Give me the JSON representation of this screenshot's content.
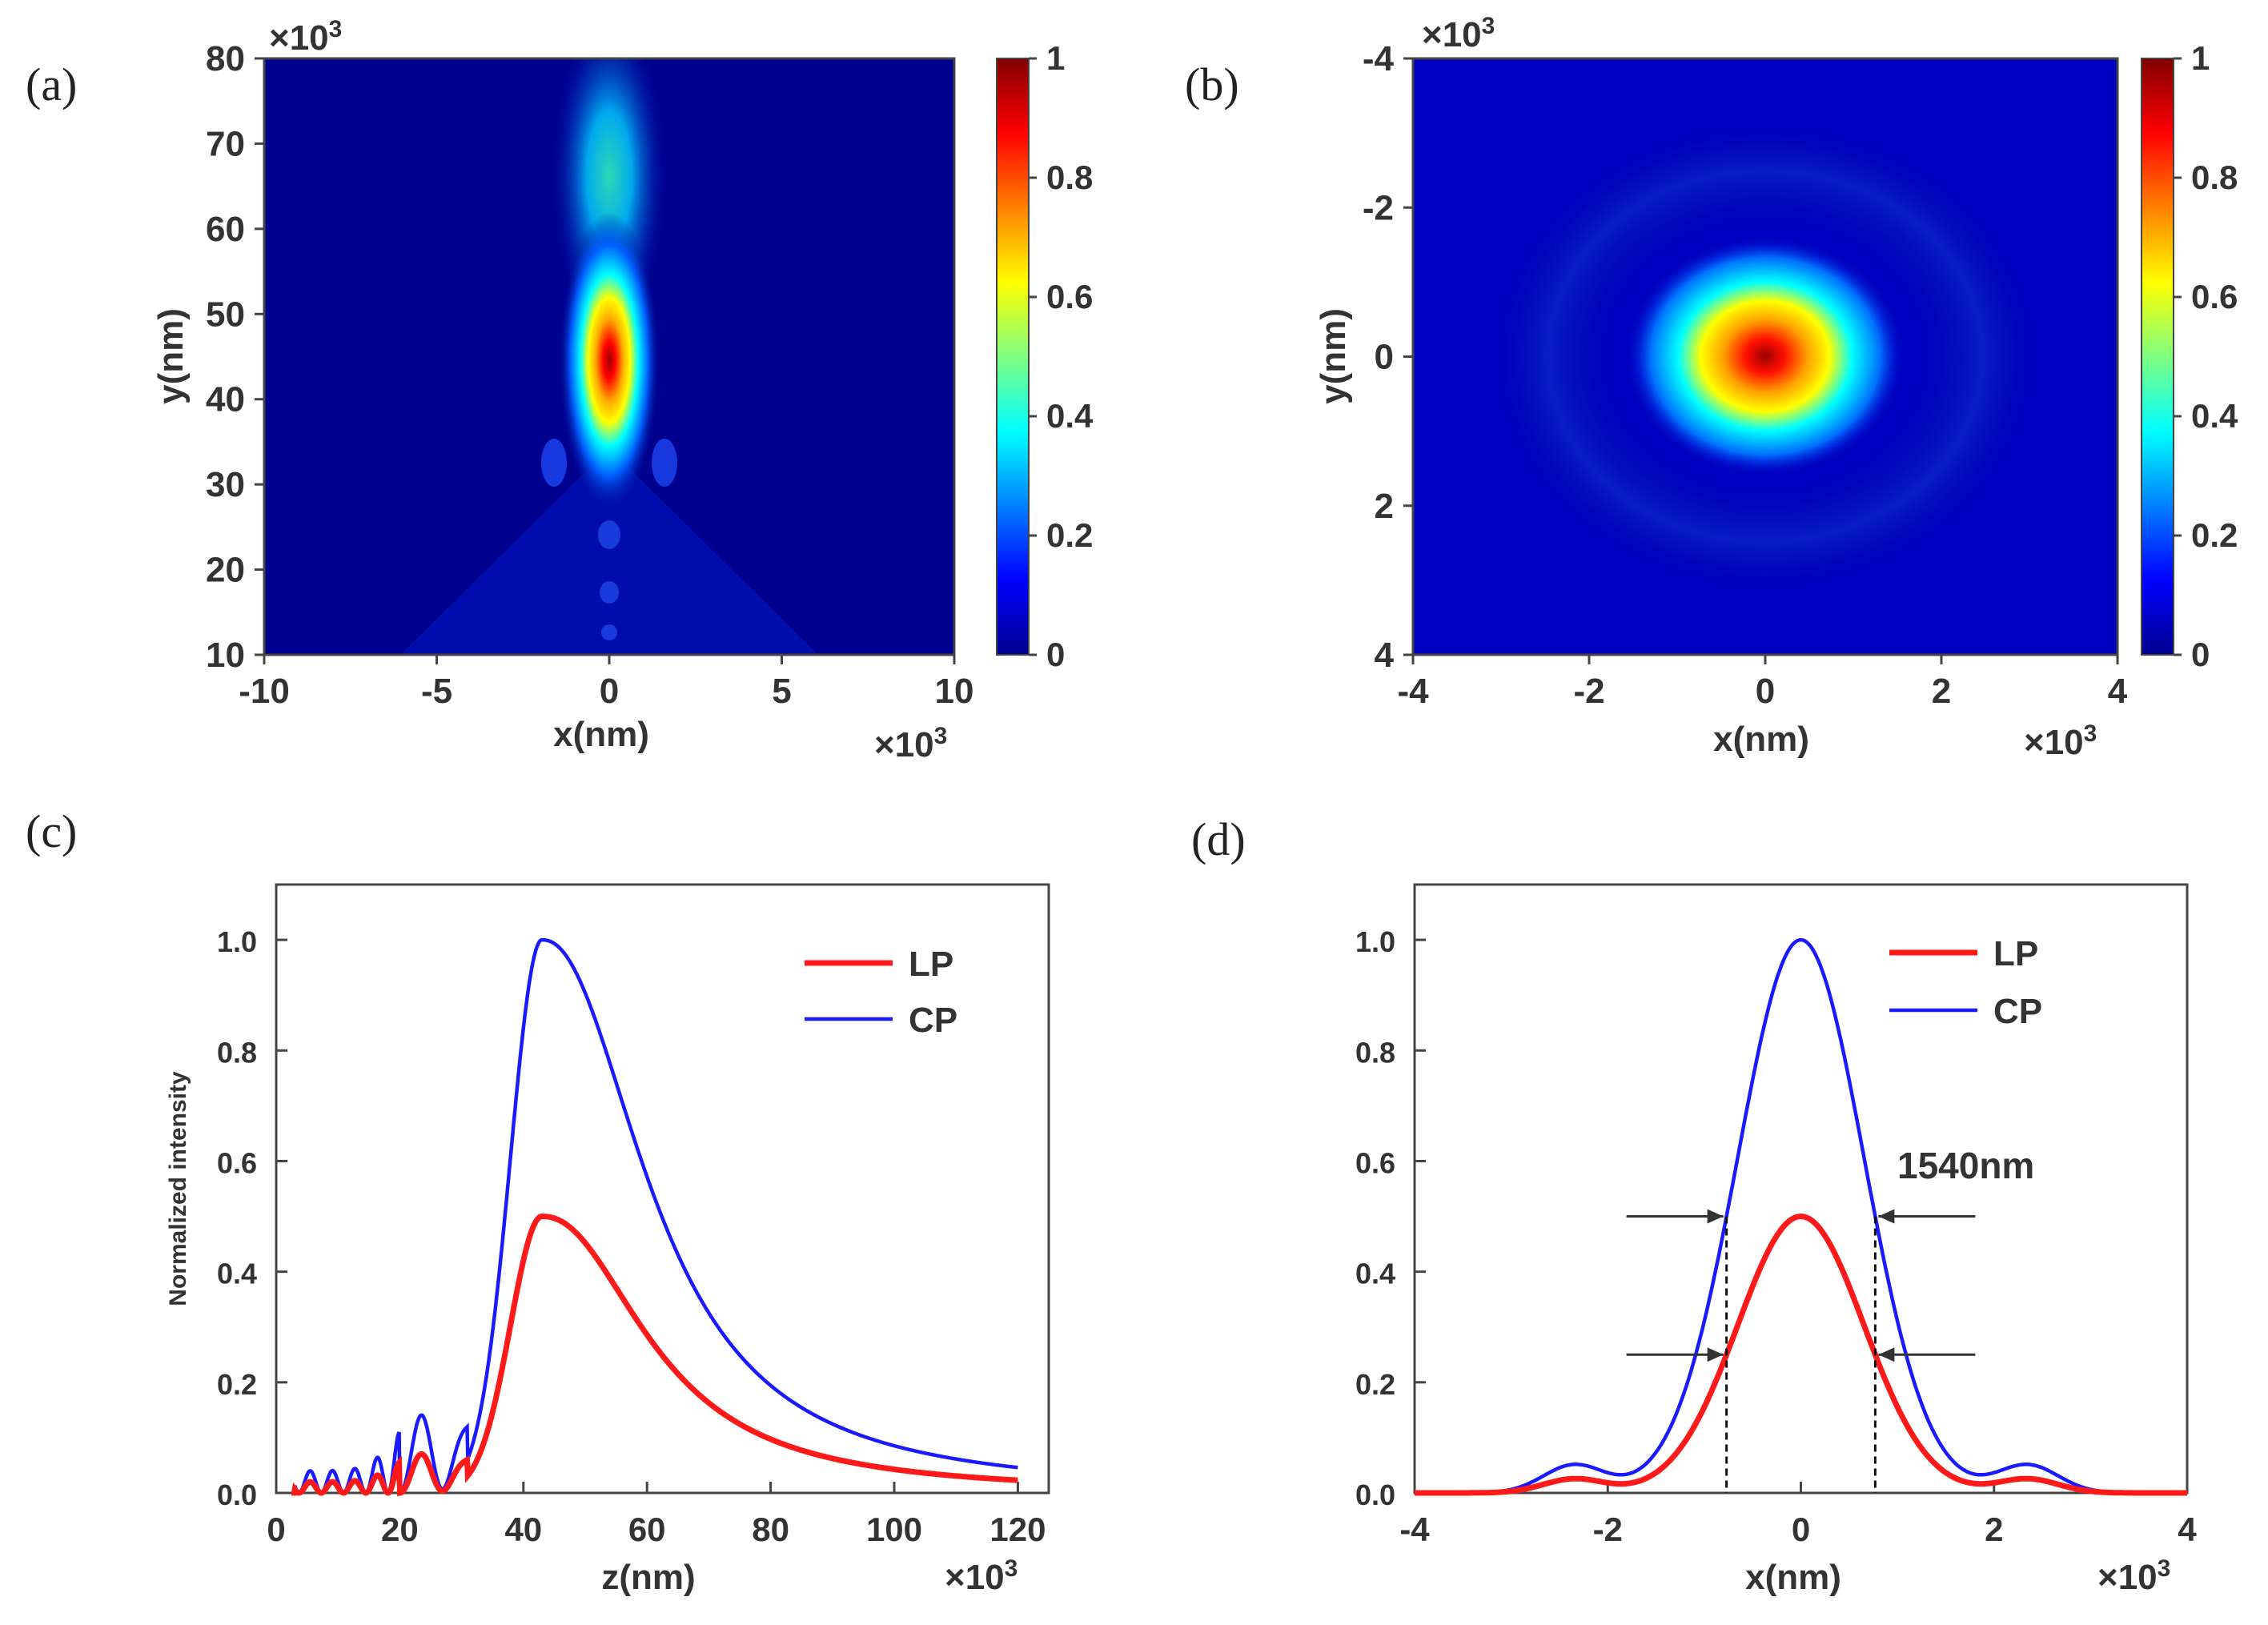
{
  "chart_data": [
    {
      "panel": "(a)",
      "type": "heatmap",
      "xlabel": "x(nm)",
      "ylabel": "y(nm)",
      "x_multiplier": "×10",
      "y_multiplier": "×10",
      "exponent": "3",
      "xlim": [
        -10,
        10
      ],
      "ylim": [
        10,
        80
      ],
      "xticks": [
        "-10",
        "-5",
        "0",
        "5",
        "10"
      ],
      "yticks": [
        "10",
        "20",
        "30",
        "40",
        "50",
        "60",
        "70",
        "80"
      ],
      "colorbar": {
        "min": 0,
        "max": 1,
        "ticks": [
          "0",
          "0.2",
          "0.4",
          "0.6",
          "0.8",
          "1"
        ]
      },
      "peak": {
        "x": 0,
        "y": 44,
        "value": 1.0
      }
    },
    {
      "panel": "(b)",
      "type": "heatmap",
      "xlabel": "x(nm)",
      "ylabel": "y(nm)",
      "x_multiplier": "×10",
      "y_multiplier": "×10",
      "exponent": "3",
      "xlim": [
        -4,
        4
      ],
      "ylim": [
        4,
        -4
      ],
      "xticks": [
        "-4",
        "-2",
        "0",
        "2",
        "4"
      ],
      "yticks": [
        "-4",
        "-2",
        "0",
        "2",
        "4"
      ],
      "colorbar": {
        "min": 0,
        "max": 1,
        "ticks": [
          "0",
          "0.2",
          "0.4",
          "0.6",
          "0.8",
          "1"
        ]
      },
      "peak": {
        "x": 0,
        "y": 0,
        "value": 1.0
      }
    },
    {
      "panel": "(c)",
      "type": "line",
      "xlabel": "z(nm)",
      "ylabel": "Normalized intensity",
      "x_multiplier": "×10",
      "exponent": "3",
      "xlim": [
        0,
        125
      ],
      "ylim": [
        0,
        1.1
      ],
      "xticks": [
        "0",
        "20",
        "40",
        "60",
        "80",
        "100",
        "120"
      ],
      "yticks": [
        "0.0",
        "0.2",
        "0.4",
        "0.6",
        "0.8",
        "1.0"
      ],
      "legend": "top-right",
      "series": [
        {
          "name": "LP",
          "color": "#ff1a1a",
          "peak_x": 43,
          "peak_y": 0.5
        },
        {
          "name": "CP",
          "color": "#1a1aff",
          "peak_x": 43,
          "peak_y": 1.0
        }
      ]
    },
    {
      "panel": "(d)",
      "type": "line",
      "xlabel": "x(nm)",
      "x_multiplier": "×10",
      "exponent": "3",
      "xlim": [
        -4,
        4
      ],
      "ylim": [
        0,
        1.1
      ],
      "xticks": [
        "-4",
        "-2",
        "0",
        "2",
        "4"
      ],
      "yticks": [
        "0.0",
        "0.2",
        "0.4",
        "0.6",
        "0.8",
        "1.0"
      ],
      "legend": "top-right",
      "annotation": "1540nm",
      "fwhm_markers_x": [
        -0.77,
        0.77
      ],
      "series": [
        {
          "name": "LP",
          "color": "#ff1a1a",
          "peak_x": 0,
          "peak_y": 0.5
        },
        {
          "name": "CP",
          "color": "#1a1aff",
          "peak_x": 0,
          "peak_y": 1.0
        }
      ]
    }
  ]
}
